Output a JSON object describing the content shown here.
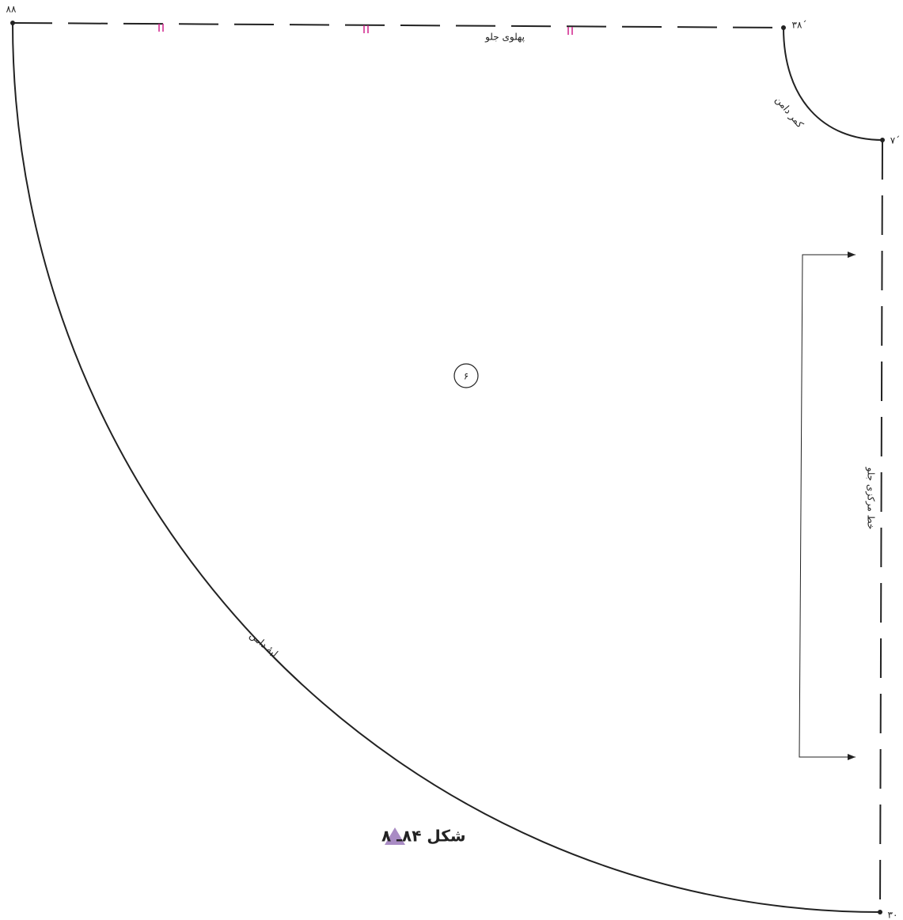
{
  "points": [
    {
      "label": "۸۸"
    },
    {
      "label": "۳۸´"
    },
    {
      "label": "۷´"
    },
    {
      "label": "۳۰"
    }
  ],
  "lines": {
    "side_front": "پهلوی جلو",
    "waist": "کمر دامن",
    "center_front": "خط مرکزی جلو",
    "hem": "لبهٔ دامن"
  },
  "piece_number": "۶",
  "caption": "شکل ۸۴ـ ۸"
}
